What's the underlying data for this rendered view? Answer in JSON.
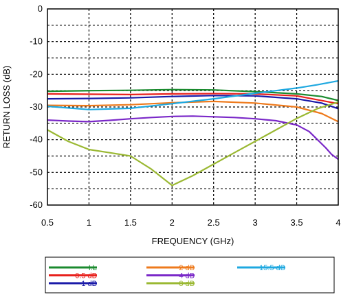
{
  "chart_data": {
    "type": "line",
    "title": "",
    "xlabel": "FREQUENCY (GHz)",
    "ylabel": "RETURN LOSS (dB)",
    "xlim": [
      0.5,
      4
    ],
    "ylim": [
      -60,
      0
    ],
    "xticks": [
      "0.5",
      "1",
      "1.5",
      "2",
      "2.5",
      "3",
      "3.5",
      "4"
    ],
    "yticks": [
      "0",
      "-10",
      "-20",
      "-30",
      "-40",
      "-50",
      "-60"
    ],
    "grid": true,
    "legend_position": "bottom",
    "series": [
      {
        "name": "I.L",
        "color": "#1a8a2e",
        "x": [
          0.5,
          1,
          1.5,
          2,
          2.5,
          3,
          3.5,
          3.8,
          4
        ],
        "y": [
          -25.2,
          -25.0,
          -24.9,
          -24.7,
          -24.8,
          -25.3,
          -26.0,
          -26.8,
          -28.0
        ]
      },
      {
        "name": "0.5 dB",
        "color": "#e8201c",
        "x": [
          0.5,
          1,
          1.5,
          2,
          2.5,
          3,
          3.5,
          4
        ],
        "y": [
          -26.0,
          -26.1,
          -26.2,
          -26.0,
          -25.9,
          -26.0,
          -26.6,
          -29.0
        ]
      },
      {
        "name": "1 dB",
        "color": "#1a1aa8",
        "x": [
          0.5,
          1,
          1.5,
          2,
          2.5,
          3,
          3.5,
          3.8,
          4
        ],
        "y": [
          -27.5,
          -27.4,
          -27.2,
          -26.8,
          -26.5,
          -26.6,
          -27.5,
          -28.8,
          -30.5
        ]
      },
      {
        "name": "2 dB",
        "color": "#ee7a1c",
        "x": [
          0.5,
          1,
          1.5,
          2,
          2.5,
          3,
          3.5,
          3.8,
          4
        ],
        "y": [
          -29.5,
          -29.6,
          -29.3,
          -28.7,
          -28.3,
          -28.8,
          -30.0,
          -32.0,
          -34.5
        ]
      },
      {
        "name": "4 dB",
        "color": "#7a28c8",
        "x": [
          0.5,
          0.75,
          1,
          1.25,
          1.5,
          1.75,
          2,
          2.25,
          2.5,
          2.75,
          3,
          3.25,
          3.5,
          3.65,
          3.75,
          3.85,
          3.92,
          4
        ],
        "y": [
          -34.0,
          -34.3,
          -34.5,
          -34.1,
          -33.6,
          -33.2,
          -32.9,
          -32.8,
          -33.0,
          -33.2,
          -33.6,
          -34.2,
          -35.5,
          -37.5,
          -40.0,
          -42.5,
          -44.5,
          -46.0
        ]
      },
      {
        "name": "8 dB",
        "color": "#9ab832",
        "x": [
          0.5,
          0.75,
          1,
          1.25,
          1.5,
          1.75,
          2,
          2.25,
          2.5,
          2.75,
          3,
          3.25,
          3.5,
          3.75,
          4
        ],
        "y": [
          -37.0,
          -40.5,
          -43.0,
          -44.0,
          -45.0,
          -49.0,
          -54.0,
          -51.0,
          -47.5,
          -44.0,
          -40.5,
          -37.0,
          -33.5,
          -30.5,
          -28.5
        ]
      },
      {
        "name": "15.5 dB",
        "color": "#1ea8e0",
        "x": [
          0.5,
          1,
          1.5,
          2,
          2.5,
          3,
          3.25,
          3.5,
          3.75,
          4
        ],
        "y": [
          -29.8,
          -30.8,
          -30.4,
          -29.0,
          -27.5,
          -25.8,
          -25.0,
          -24.2,
          -23.2,
          -22.0
        ]
      }
    ]
  },
  "legend": {
    "columns": [
      [
        "I.L",
        "0.5 dB",
        "1 dB"
      ],
      [
        "2 dB",
        "4 dB",
        "8 dB"
      ],
      [
        "15.5 dB"
      ]
    ]
  }
}
